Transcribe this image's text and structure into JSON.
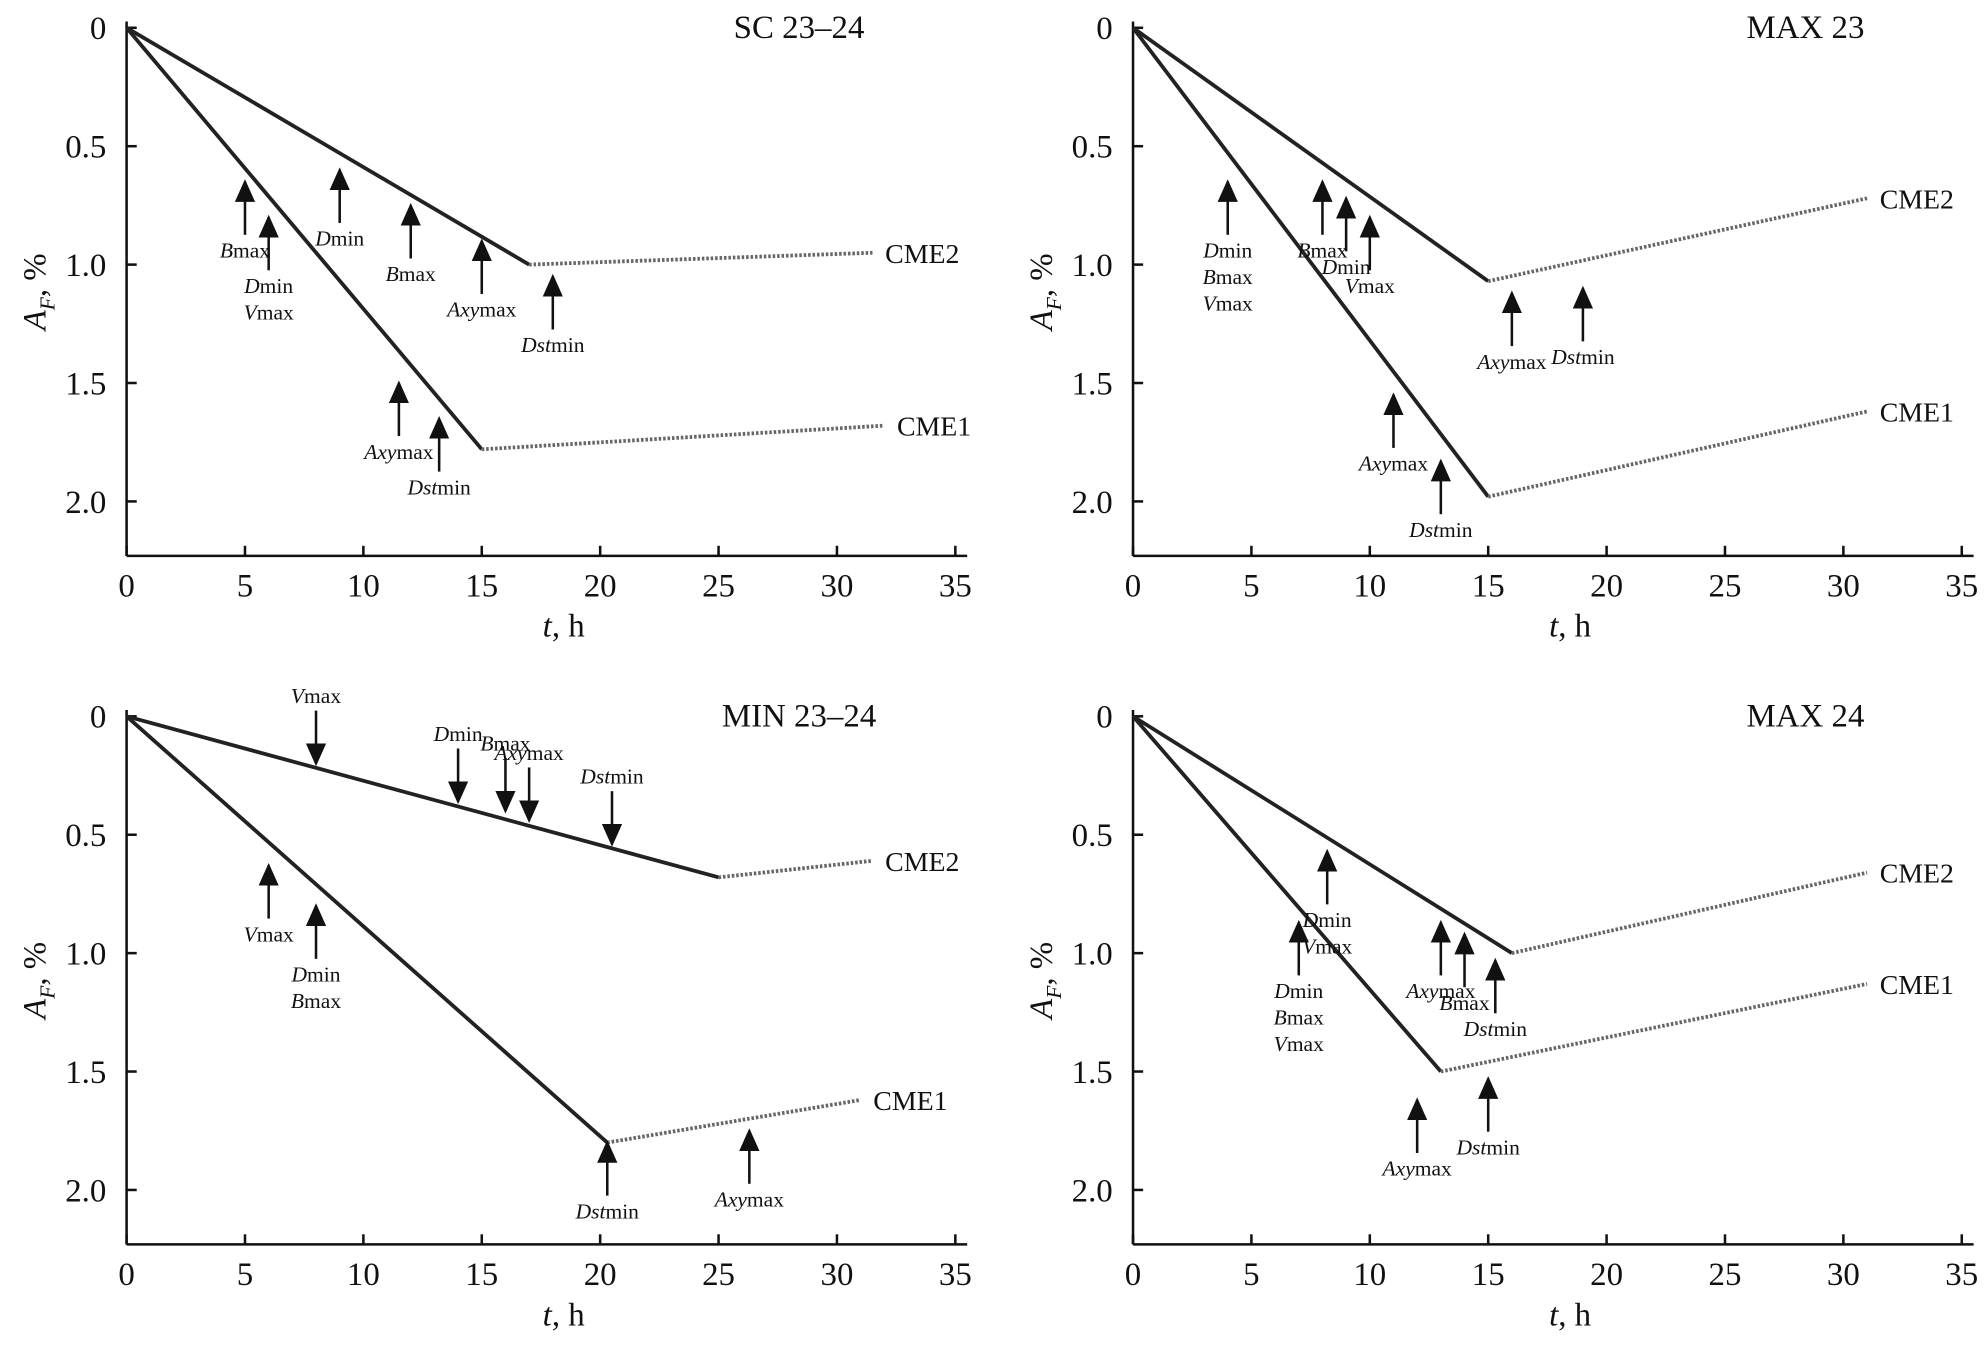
{
  "chart_data": [
    {
      "type": "line",
      "title": "SC 23–24",
      "xlabel": "t, h",
      "ylabel": {
        "main": "A",
        "sub": "F",
        "rest": ", %"
      },
      "xlim": [
        0,
        35.5
      ],
      "ylim": [
        0,
        2.23
      ],
      "y_inverted": true,
      "xticks": [
        0,
        5,
        10,
        15,
        20,
        25,
        30,
        35
      ],
      "yticks": [
        0,
        0.5,
        {
          "value": 1,
          "label": "1.0"
        },
        1.5,
        {
          "value": 2,
          "label": "2.0"
        }
      ],
      "series": [
        {
          "name": "CME2",
          "color": "#222222",
          "x": [
            0,
            17,
            31.5
          ],
          "values": [
            0,
            1.0,
            0.95
          ]
        },
        {
          "name": "CME1",
          "color": "#222222",
          "x": [
            0,
            15,
            32
          ],
          "values": [
            0,
            1.78,
            1.68
          ]
        }
      ],
      "annotations": [
        {
          "text": [
            "Bmax"
          ],
          "x": 5,
          "y": 0.65,
          "direction": "up"
        },
        {
          "text": [
            "Dmin",
            "Vmax"
          ],
          "x": 6,
          "y": 0.8,
          "direction": "up"
        },
        {
          "text": [
            "Dmin"
          ],
          "x": 9,
          "y": 0.6,
          "direction": "up"
        },
        {
          "text": [
            "Bmax"
          ],
          "x": 12,
          "y": 0.75,
          "direction": "up"
        },
        {
          "text": [
            "Axymax"
          ],
          "x": 15,
          "y": 0.9,
          "direction": "up"
        },
        {
          "text": [
            "Dstmin"
          ],
          "x": 18,
          "y": 1.05,
          "direction": "up"
        },
        {
          "text": [
            "Axymax"
          ],
          "x": 11.5,
          "y": 1.5,
          "direction": "up"
        },
        {
          "text": [
            "Dstmin"
          ],
          "x": 13.2,
          "y": 1.65,
          "direction": "up"
        }
      ]
    },
    {
      "type": "line",
      "title": "MAX 23",
      "xlabel": "t, h",
      "ylabel": {
        "main": "A",
        "sub": "F",
        "rest": ", %"
      },
      "xlim": [
        0,
        35.5
      ],
      "ylim": [
        0,
        2.23
      ],
      "y_inverted": true,
      "xticks": [
        0,
        5,
        10,
        15,
        20,
        25,
        30,
        35
      ],
      "yticks": [
        0,
        0.5,
        {
          "value": 1,
          "label": "1.0"
        },
        1.5,
        {
          "value": 2,
          "label": "2.0"
        }
      ],
      "series": [
        {
          "name": "CME2",
          "color": "#222222",
          "x": [
            0,
            15,
            31
          ],
          "values": [
            0,
            1.07,
            0.72
          ]
        },
        {
          "name": "CME1",
          "color": "#222222",
          "x": [
            0,
            15,
            31
          ],
          "values": [
            0,
            1.98,
            1.62
          ]
        }
      ],
      "annotations": [
        {
          "text": [
            "Dmin",
            "Bmax",
            "Vmax"
          ],
          "x": 4,
          "y": 0.65,
          "direction": "up"
        },
        {
          "text": [
            "Bmax"
          ],
          "x": 8,
          "y": 0.65,
          "direction": "up"
        },
        {
          "text": [
            "Dmin"
          ],
          "x": 9,
          "y": 0.72,
          "direction": "up"
        },
        {
          "text": [
            "Vmax"
          ],
          "x": 10,
          "y": 0.8,
          "direction": "up"
        },
        {
          "text": [
            "Axymax"
          ],
          "x": 16,
          "y": 1.12,
          "direction": "up"
        },
        {
          "text": [
            "Dstmin"
          ],
          "x": 19,
          "y": 1.1,
          "direction": "up"
        },
        {
          "text": [
            "Axymax"
          ],
          "x": 11,
          "y": 1.55,
          "direction": "up"
        },
        {
          "text": [
            "Dstmin"
          ],
          "x": 13,
          "y": 1.83,
          "direction": "up"
        }
      ]
    },
    {
      "type": "line",
      "title": "MIN 23–24",
      "xlabel": "t, h",
      "ylabel": {
        "main": "A",
        "sub": "F",
        "rest": ", %"
      },
      "xlim": [
        0,
        35.5
      ],
      "ylim": [
        0,
        2.23
      ],
      "y_inverted": true,
      "xticks": [
        0,
        5,
        10,
        15,
        20,
        25,
        30,
        35
      ],
      "yticks": [
        0,
        0.5,
        {
          "value": 1,
          "label": "1.0"
        },
        1.5,
        {
          "value": 2,
          "label": "2.0"
        }
      ],
      "series": [
        {
          "name": "CME2",
          "color": "#222222",
          "x": [
            0,
            25,
            31.5
          ],
          "values": [
            0,
            0.68,
            0.61
          ]
        },
        {
          "name": "CME1",
          "color": "#222222",
          "x": [
            0,
            20.3,
            31
          ],
          "values": [
            0,
            1.8,
            1.62
          ]
        }
      ],
      "annotations": [
        {
          "text": [
            "Vmax"
          ],
          "x": 8,
          "y": 0.2,
          "direction": "down"
        },
        {
          "text": [
            "Dmin"
          ],
          "x": 14,
          "y": 0.36,
          "direction": "down"
        },
        {
          "text": [
            "Bmax"
          ],
          "x": 16,
          "y": 0.4,
          "direction": "down"
        },
        {
          "text": [
            "Axymax"
          ],
          "x": 17,
          "y": 0.44,
          "direction": "down"
        },
        {
          "text": [
            "Dstmin"
          ],
          "x": 20.5,
          "y": 0.54,
          "direction": "down"
        },
        {
          "text": [
            "Vmax"
          ],
          "x": 6,
          "y": 0.63,
          "direction": "up"
        },
        {
          "text": [
            "Dmin",
            "Bmax"
          ],
          "x": 8,
          "y": 0.8,
          "direction": "up"
        },
        {
          "text": [
            "Dstmin"
          ],
          "x": 20.3,
          "y": 1.8,
          "direction": "up"
        },
        {
          "text": [
            "Axymax"
          ],
          "x": 26.3,
          "y": 1.75,
          "direction": "up"
        }
      ]
    },
    {
      "type": "line",
      "title": "MAX 24",
      "xlabel": "t, h",
      "ylabel": {
        "main": "A",
        "sub": "F",
        "rest": ", %"
      },
      "xlim": [
        0,
        35.5
      ],
      "ylim": [
        0,
        2.23
      ],
      "y_inverted": true,
      "xticks": [
        0,
        5,
        10,
        15,
        20,
        25,
        30,
        35
      ],
      "yticks": [
        0,
        0.5,
        {
          "value": 1,
          "label": "1.0"
        },
        1.5,
        {
          "value": 2,
          "label": "2.0"
        }
      ],
      "series": [
        {
          "name": "CME2",
          "color": "#222222",
          "x": [
            0,
            16,
            31
          ],
          "values": [
            0,
            1.0,
            0.66
          ]
        },
        {
          "name": "CME1",
          "color": "#222222",
          "x": [
            0,
            13,
            31
          ],
          "values": [
            0,
            1.5,
            1.13
          ]
        }
      ],
      "annotations": [
        {
          "text": [
            "Dmin",
            "Vmax"
          ],
          "x": 8.2,
          "y": 0.57,
          "direction": "up"
        },
        {
          "text": [
            "Dmin",
            "Bmax",
            "Vmax"
          ],
          "x": 7,
          "y": 0.87,
          "direction": "up"
        },
        {
          "text": [
            "Axymax"
          ],
          "x": 13,
          "y": 0.87,
          "direction": "up"
        },
        {
          "text": [
            "Bmax"
          ],
          "x": 14,
          "y": 0.92,
          "direction": "up"
        },
        {
          "text": [
            "Dstmin"
          ],
          "x": 15.3,
          "y": 1.03,
          "direction": "up"
        },
        {
          "text": [
            "Axymax"
          ],
          "x": 12,
          "y": 1.62,
          "direction": "up"
        },
        {
          "text": [
            "Dstmin"
          ],
          "x": 15,
          "y": 1.53,
          "direction": "up"
        }
      ]
    }
  ]
}
